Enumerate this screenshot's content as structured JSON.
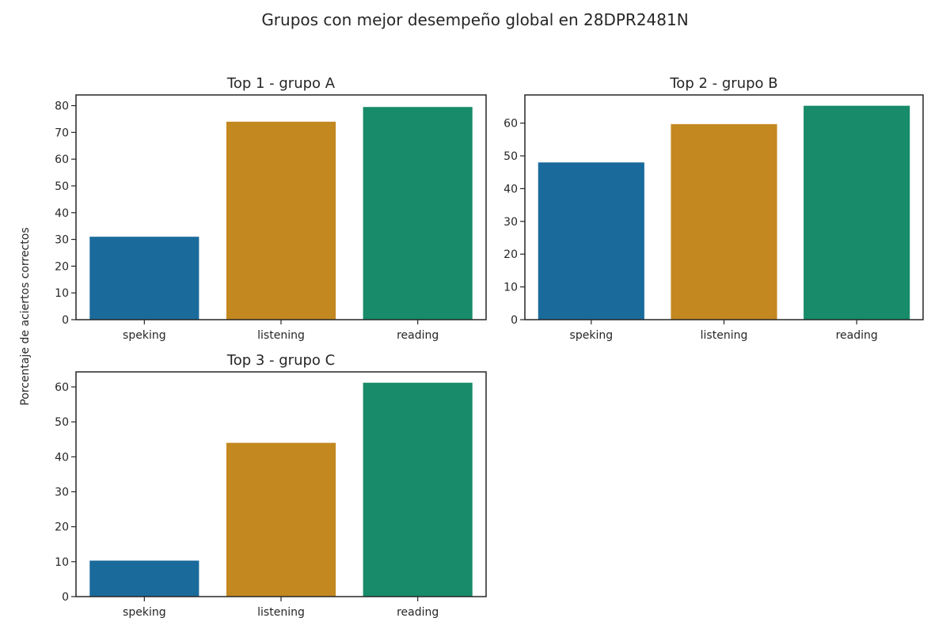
{
  "figure": {
    "suptitle": "Grupos con mejor desempeño global en 28DPR2481N",
    "ylabel": "Porcentaje de aciertos correctos"
  },
  "chart_data": [
    {
      "type": "bar",
      "title": "Top  1 - grupo A",
      "categories": [
        "speking",
        "listening",
        "reading"
      ],
      "values": [
        31,
        74,
        79.5
      ],
      "colors": [
        "#1a6b9c",
        "#c38820",
        "#178b6a"
      ],
      "ylim": [
        0,
        84
      ],
      "yticks": [
        0,
        10,
        20,
        30,
        40,
        50,
        60,
        70,
        80
      ],
      "xlabel": "",
      "ylabel": ""
    },
    {
      "type": "bar",
      "title": "Top  2 - grupo B",
      "categories": [
        "speking",
        "listening",
        "reading"
      ],
      "values": [
        48,
        59.7,
        65.3
      ],
      "colors": [
        "#1a6b9c",
        "#c38820",
        "#178b6a"
      ],
      "ylim": [
        0,
        68.6
      ],
      "yticks": [
        0,
        10,
        20,
        30,
        40,
        50,
        60
      ],
      "xlabel": "",
      "ylabel": ""
    },
    {
      "type": "bar",
      "title": "Top  3 - grupo C",
      "categories": [
        "speking",
        "listening",
        "reading"
      ],
      "values": [
        10.3,
        44,
        61.2
      ],
      "colors": [
        "#1a6b9c",
        "#c38820",
        "#178b6a"
      ],
      "ylim": [
        0,
        64.3
      ],
      "yticks": [
        0,
        10,
        20,
        30,
        40,
        50,
        60
      ],
      "xlabel": "",
      "ylabel": ""
    }
  ]
}
